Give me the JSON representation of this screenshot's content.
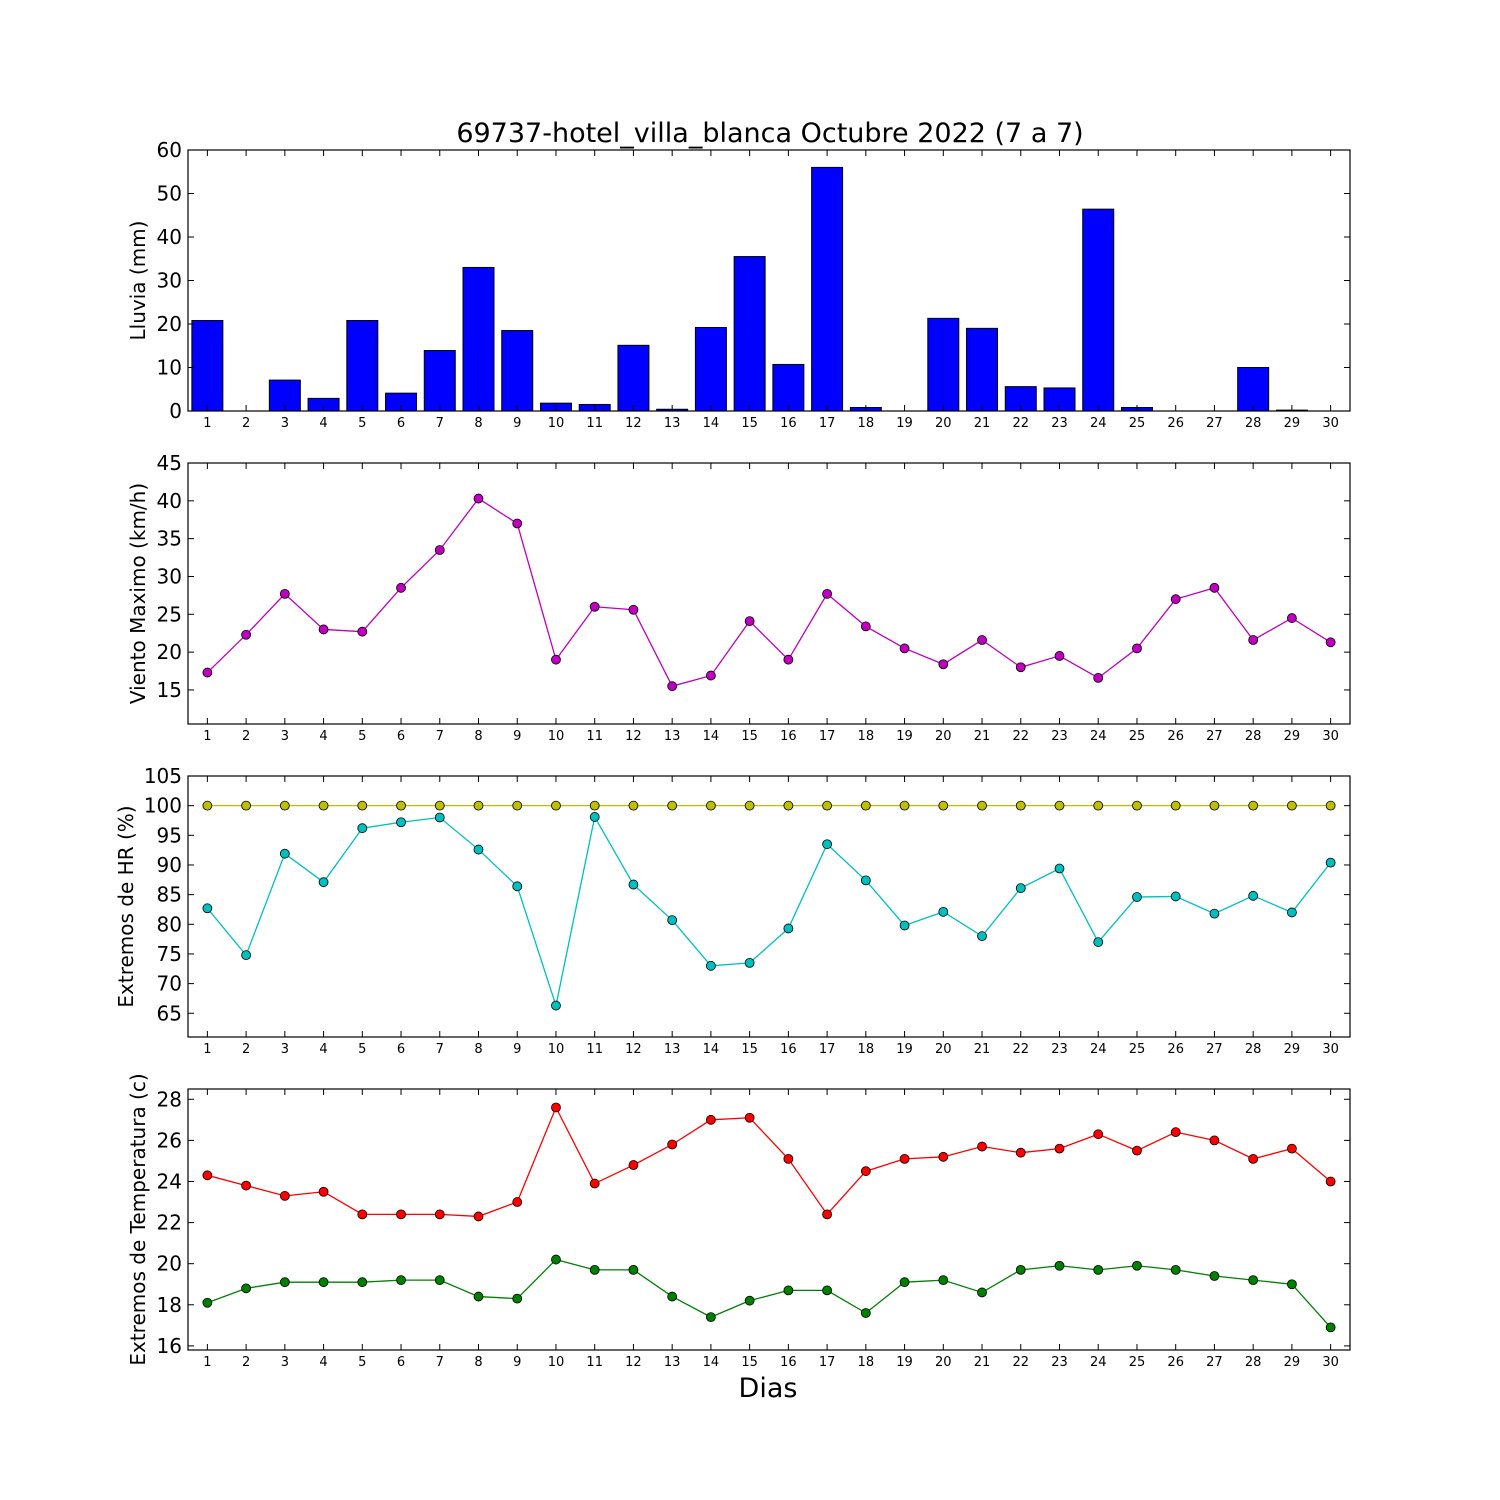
{
  "title": "69737-hotel_villa_blanca Octubre 2022  (7 a 7)",
  "xlabel": "Dias",
  "chart_data": [
    {
      "type": "bar",
      "ylabel": "Lluvia (mm)",
      "ylim": [
        0,
        60
      ],
      "yticks": [
        0,
        10,
        20,
        30,
        40,
        50,
        60
      ],
      "xlim": [
        0.5,
        30.5
      ],
      "categories": [
        1,
        2,
        3,
        4,
        5,
        6,
        7,
        8,
        9,
        10,
        11,
        12,
        13,
        14,
        15,
        16,
        17,
        18,
        19,
        20,
        21,
        22,
        23,
        24,
        25,
        26,
        27,
        28,
        29,
        30
      ],
      "color": "#0000ff",
      "series": [
        {
          "values": [
            20.8,
            0,
            7.1,
            2.9,
            20.8,
            4.1,
            13.9,
            33.0,
            18.5,
            1.8,
            1.5,
            15.1,
            0.4,
            19.2,
            35.5,
            10.7,
            56.0,
            0.8,
            0,
            21.3,
            19.0,
            5.6,
            5.3,
            46.4,
            0.8,
            0,
            0,
            10.0,
            0.2,
            0
          ]
        }
      ]
    },
    {
      "type": "line",
      "ylabel": "Viento Maximo (km/h)",
      "ylim": [
        10.5,
        45
      ],
      "yticks": [
        15,
        20,
        25,
        30,
        35,
        40,
        45
      ],
      "xlim": [
        0.5,
        30.5
      ],
      "x": [
        1,
        2,
        3,
        4,
        5,
        6,
        7,
        8,
        9,
        10,
        11,
        12,
        13,
        14,
        15,
        16,
        17,
        18,
        19,
        20,
        21,
        22,
        23,
        24,
        25,
        26,
        27,
        28,
        29,
        30
      ],
      "series": [
        {
          "color": "#bf00bf",
          "values": [
            17.3,
            22.3,
            27.7,
            23.0,
            22.7,
            28.5,
            33.5,
            40.3,
            37.0,
            19.0,
            26.0,
            25.6,
            15.5,
            16.9,
            24.1,
            19.0,
            27.7,
            23.4,
            20.5,
            18.4,
            21.6,
            18.0,
            19.5,
            16.6,
            20.5,
            27.0,
            28.5,
            21.6,
            24.5,
            21.3
          ]
        }
      ]
    },
    {
      "type": "line",
      "ylabel": "Extremos de HR (%)",
      "ylim": [
        61,
        105
      ],
      "yticks": [
        65,
        70,
        75,
        80,
        85,
        90,
        95,
        100,
        105
      ],
      "xlim": [
        0.5,
        30.5
      ],
      "x": [
        1,
        2,
        3,
        4,
        5,
        6,
        7,
        8,
        9,
        10,
        11,
        12,
        13,
        14,
        15,
        16,
        17,
        18,
        19,
        20,
        21,
        22,
        23,
        24,
        25,
        26,
        27,
        28,
        29,
        30
      ],
      "series": [
        {
          "color": "#bfbf00",
          "values": [
            100,
            100,
            100,
            100,
            100,
            100,
            100,
            100,
            100,
            100,
            100,
            100,
            100,
            100,
            100,
            100,
            100,
            100,
            100,
            100,
            100,
            100,
            100,
            100,
            100,
            100,
            100,
            100,
            100,
            100
          ]
        },
        {
          "color": "#00bfbf",
          "values": [
            82.7,
            74.8,
            91.9,
            87.1,
            96.2,
            97.2,
            98.0,
            92.6,
            86.4,
            66.3,
            98.1,
            86.7,
            80.7,
            73.0,
            73.5,
            79.3,
            93.5,
            87.4,
            79.8,
            82.1,
            78.0,
            86.1,
            89.4,
            77.0,
            84.6,
            84.7,
            81.8,
            84.8,
            82.0,
            90.4
          ]
        }
      ]
    },
    {
      "type": "line",
      "ylabel": "Extremos de Temperatura (c)",
      "ylim": [
        15.8,
        28.5
      ],
      "yticks": [
        16,
        18,
        20,
        22,
        24,
        26,
        28
      ],
      "xlim": [
        0.5,
        30.5
      ],
      "x": [
        1,
        2,
        3,
        4,
        5,
        6,
        7,
        8,
        9,
        10,
        11,
        12,
        13,
        14,
        15,
        16,
        17,
        18,
        19,
        20,
        21,
        22,
        23,
        24,
        25,
        26,
        27,
        28,
        29,
        30
      ],
      "series": [
        {
          "color": "#ff0000",
          "values": [
            24.3,
            23.8,
            23.3,
            23.5,
            22.4,
            22.4,
            22.4,
            22.3,
            23.0,
            27.6,
            23.9,
            24.8,
            25.8,
            27.0,
            27.1,
            25.1,
            22.4,
            24.5,
            25.1,
            25.2,
            25.7,
            25.4,
            25.6,
            26.3,
            25.5,
            26.4,
            26.0,
            25.1,
            25.6,
            24.0
          ]
        },
        {
          "color": "#008000",
          "values": [
            18.1,
            18.8,
            19.1,
            19.1,
            19.1,
            19.2,
            19.2,
            18.4,
            18.3,
            20.2,
            19.7,
            19.7,
            18.4,
            17.4,
            18.2,
            18.7,
            18.7,
            17.6,
            19.1,
            19.2,
            18.6,
            19.7,
            19.9,
            19.7,
            19.9,
            19.7,
            19.4,
            19.2,
            19.0,
            16.9
          ]
        }
      ]
    }
  ]
}
